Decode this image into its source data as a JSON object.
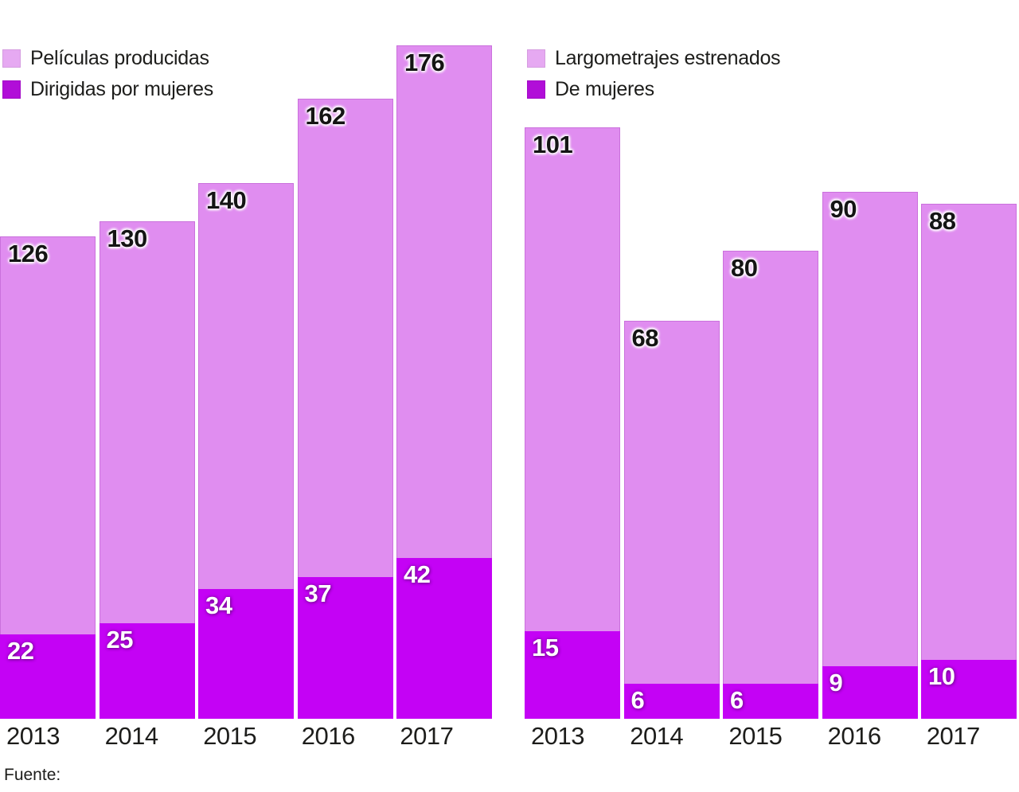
{
  "colors": {
    "background": "#ffffff",
    "bar_light": "#e08df0",
    "bar_dark": "#c402f5",
    "legend_light": "#e6a9f2",
    "legend_dark": "#b10ed8",
    "text": "#1d1d1b",
    "value_light_text": "#141414",
    "value_dark_text": "#ffffff"
  },
  "footer": {
    "source_label": "Fuente:"
  },
  "chart_data": [
    {
      "type": "bar",
      "title": "",
      "categories": [
        "2013",
        "2014",
        "2015",
        "2016",
        "2017"
      ],
      "series": [
        {
          "name": "Películas producidas",
          "role": "total",
          "color": "#e08df0",
          "values": [
            126,
            130,
            140,
            162,
            176
          ]
        },
        {
          "name": "Dirigidas por mujeres",
          "role": "women",
          "color": "#c402f5",
          "values": [
            22,
            25,
            34,
            37,
            42
          ]
        }
      ],
      "legend": [
        {
          "label": "Películas producidas",
          "swatch_color": "#e6a9f2"
        },
        {
          "label": "Dirigidas por mujeres",
          "swatch_color": "#b10ed8"
        }
      ],
      "legend_position": "top-left",
      "grid": false,
      "ylim": [
        0,
        176
      ],
      "value_labels": "inside-top-left"
    },
    {
      "type": "bar",
      "title": "",
      "categories": [
        "2013",
        "2014",
        "2015",
        "2016",
        "2017"
      ],
      "series": [
        {
          "name": "Largometrajes estrenados",
          "role": "total",
          "color": "#e08df0",
          "values": [
            101,
            68,
            80,
            90,
            88
          ]
        },
        {
          "name": "De mujeres",
          "role": "women",
          "color": "#c402f5",
          "values": [
            15,
            6,
            6,
            9,
            10
          ]
        }
      ],
      "legend": [
        {
          "label": "Largometrajes estrenados",
          "swatch_color": "#e6a9f2"
        },
        {
          "label": "De mujeres",
          "swatch_color": "#b10ed8"
        }
      ],
      "legend_position": "top-left",
      "grid": false,
      "ylim": [
        0,
        115
      ],
      "value_labels": "inside-top-left"
    }
  ]
}
